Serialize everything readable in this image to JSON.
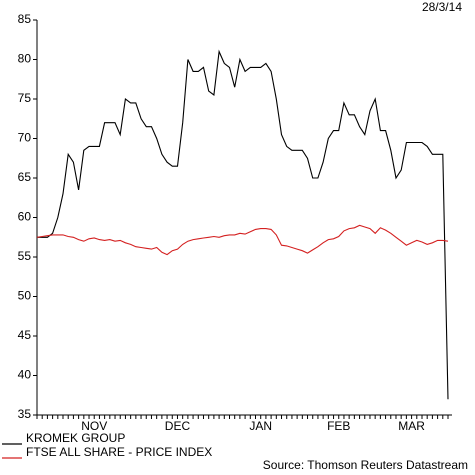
{
  "chart_data": {
    "type": "line",
    "date": "28/3/14",
    "source": "Source: Thomson Reuters Datastream",
    "categories": [
      null,
      null,
      null,
      null,
      null,
      null,
      null,
      null,
      null,
      null,
      null,
      "NOV",
      null,
      null,
      null,
      null,
      null,
      null,
      null,
      null,
      null,
      null,
      null,
      null,
      null,
      null,
      null,
      "DEC",
      null,
      null,
      null,
      null,
      null,
      null,
      null,
      null,
      null,
      null,
      null,
      null,
      null,
      null,
      null,
      "JAN",
      null,
      null,
      null,
      null,
      null,
      null,
      null,
      null,
      null,
      null,
      null,
      null,
      null,
      null,
      "FEB",
      null,
      null,
      null,
      null,
      null,
      null,
      null,
      null,
      null,
      null,
      null,
      null,
      null,
      "MAR",
      null,
      null,
      null,
      null,
      null,
      null,
      null
    ],
    "series": [
      {
        "name": "KROMEK GROUP",
        "color": "#000000",
        "values": [
          57.5,
          57.5,
          57.5,
          58,
          60,
          63,
          68,
          67,
          63.5,
          68.5,
          69,
          69,
          69,
          72,
          72,
          72,
          70.5,
          75,
          74.5,
          74.5,
          72.5,
          71.5,
          71.5,
          70,
          68,
          67,
          66.5,
          66.5,
          72,
          80,
          78.5,
          78.5,
          79,
          76,
          75.5,
          81,
          79.5,
          79,
          76.5,
          80,
          78.5,
          79,
          79,
          79,
          79.5,
          78.5,
          75,
          70.5,
          69,
          68.5,
          68.5,
          68.5,
          67.5,
          65,
          65,
          67,
          70,
          71,
          71,
          74.5,
          73,
          73,
          71.5,
          70.5,
          73.5,
          75,
          71,
          71,
          68.5,
          65,
          66,
          69.5,
          69.5,
          69.5,
          69.5,
          69,
          68,
          68,
          68,
          37
        ]
      },
      {
        "name": "FTSE ALL SHARE - PRICE INDEX",
        "color": "#d42020",
        "values": [
          57.5,
          57.6,
          57.7,
          57.8,
          57.8,
          57.8,
          57.6,
          57.5,
          57.2,
          57.0,
          57.3,
          57.4,
          57.2,
          57.1,
          57.2,
          57.0,
          57.1,
          56.8,
          56.6,
          56.3,
          56.2,
          56.1,
          56.0,
          56.2,
          55.6,
          55.3,
          55.8,
          56.0,
          56.6,
          57.0,
          57.2,
          57.3,
          57.4,
          57.5,
          57.6,
          57.5,
          57.7,
          57.8,
          57.8,
          58.0,
          57.9,
          58.2,
          58.5,
          58.6,
          58.6,
          58.5,
          57.8,
          56.5,
          56.4,
          56.2,
          56.0,
          55.8,
          55.5,
          55.9,
          56.3,
          56.8,
          57.2,
          57.3,
          57.6,
          58.3,
          58.6,
          58.7,
          59.0,
          58.8,
          58.6,
          58.0,
          58.7,
          58.4,
          58.0,
          57.5,
          57.0,
          56.5,
          56.8,
          57.1,
          56.9,
          56.6,
          56.8,
          57.1,
          57.1,
          57.0
        ]
      }
    ],
    "ylim": [
      35,
      85
    ],
    "yticks": [
      35,
      40,
      45,
      50,
      55,
      60,
      65,
      70,
      75,
      80,
      85
    ],
    "legend": "bottom-left"
  }
}
